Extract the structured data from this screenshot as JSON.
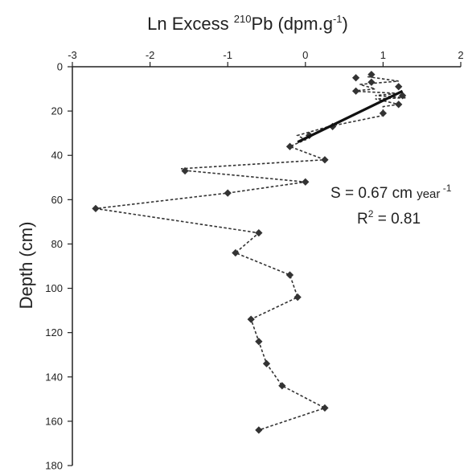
{
  "chart_data": {
    "type": "scatter",
    "title": {
      "prefix": "Ln Excess",
      "sup": "210",
      "mid": "Pb (dpm.g",
      "sup2": "-1",
      "suffix": ")"
    },
    "ylabel": "Depth (cm)",
    "xlim": [
      -3,
      2
    ],
    "ylim": [
      0,
      180
    ],
    "y_inverted": true,
    "x_axis_position": "top",
    "grid": false,
    "x_ticks": [
      "-3",
      "-2",
      "-1",
      "0",
      "1",
      "2"
    ],
    "y_ticks": [
      "0",
      "20",
      "40",
      "60",
      "80",
      "100",
      "120",
      "140",
      "160",
      "180"
    ],
    "series": [
      {
        "style": "dashed-line-with-diamond-markers",
        "color": "#333333",
        "points": [
          {
            "x": 0.8,
            "y": 4.5
          },
          {
            "x": 1.2,
            "y": 6.5
          },
          {
            "x": 0.7,
            "y": 8
          },
          {
            "x": 0.9,
            "y": 10
          },
          {
            "x": 0.6,
            "y": 11
          },
          {
            "x": 1.2,
            "y": 12
          },
          {
            "x": 0.9,
            "y": 13
          },
          {
            "x": 1.3,
            "y": 14
          },
          {
            "x": 0.9,
            "y": 14.5
          },
          {
            "x": 1.2,
            "y": 17
          },
          {
            "x": 1.0,
            "y": 18
          },
          {
            "x": 1.0,
            "y": 22
          },
          {
            "x": 0.3,
            "y": 27
          },
          {
            "x": -0.1,
            "y": 31
          },
          {
            "x": 0.0,
            "y": 33
          },
          {
            "x": -0.2,
            "y": 36
          },
          {
            "x": 0.25,
            "y": 42
          },
          {
            "x": -1.6,
            "y": 46
          },
          {
            "x": -1.5,
            "y": 47
          },
          {
            "x": 0.0,
            "y": 52
          },
          {
            "x": -1.0,
            "y": 57
          },
          {
            "x": -2.7,
            "y": 64
          },
          {
            "x": -0.6,
            "y": 75
          },
          {
            "x": -0.9,
            "y": 84
          },
          {
            "x": -0.2,
            "y": 94
          },
          {
            "x": -0.1,
            "y": 104
          },
          {
            "x": -0.7,
            "y": 114
          },
          {
            "x": -0.6,
            "y": 124
          },
          {
            "x": -0.5,
            "y": 134
          },
          {
            "x": -0.3,
            "y": 144
          },
          {
            "x": 0.25,
            "y": 154
          },
          {
            "x": -0.6,
            "y": 164
          }
        ]
      }
    ],
    "markers": [
      {
        "x": 0.85,
        "y": 3.5
      },
      {
        "x": 0.65,
        "y": 5
      },
      {
        "x": 0.85,
        "y": 7
      },
      {
        "x": 0.65,
        "y": 11
      },
      {
        "x": 1.2,
        "y": 9
      },
      {
        "x": 1.25,
        "y": 13
      },
      {
        "x": 1.2,
        "y": 17
      },
      {
        "x": 1.0,
        "y": 21
      },
      {
        "x": 0.35,
        "y": 27
      },
      {
        "x": 0.05,
        "y": 31
      },
      {
        "x": -0.2,
        "y": 36
      },
      {
        "x": 0.25,
        "y": 42
      },
      {
        "x": -1.55,
        "y": 47
      },
      {
        "x": 0.0,
        "y": 52
      },
      {
        "x": -1.0,
        "y": 57
      },
      {
        "x": -2.7,
        "y": 64
      },
      {
        "x": -0.6,
        "y": 75
      },
      {
        "x": -0.9,
        "y": 84
      },
      {
        "x": -0.2,
        "y": 94
      },
      {
        "x": -0.1,
        "y": 104
      },
      {
        "x": -0.7,
        "y": 114
      },
      {
        "x": -0.6,
        "y": 124
      },
      {
        "x": -0.5,
        "y": 134
      },
      {
        "x": -0.3,
        "y": 144
      },
      {
        "x": 0.25,
        "y": 154
      },
      {
        "x": -0.6,
        "y": 164
      }
    ],
    "fit_line": {
      "style": "solid-bold",
      "color": "#111111",
      "from": {
        "x": -0.1,
        "y": 34
      },
      "to": {
        "x": 1.25,
        "y": 11
      }
    },
    "annotations": {
      "slope_prefix": "S = 0.67 cm ",
      "slope_unit": "year",
      "slope_sup": "-1",
      "r2_prefix": "R",
      "r2_sup": "2",
      "r2_suffix": " = 0.81"
    }
  }
}
